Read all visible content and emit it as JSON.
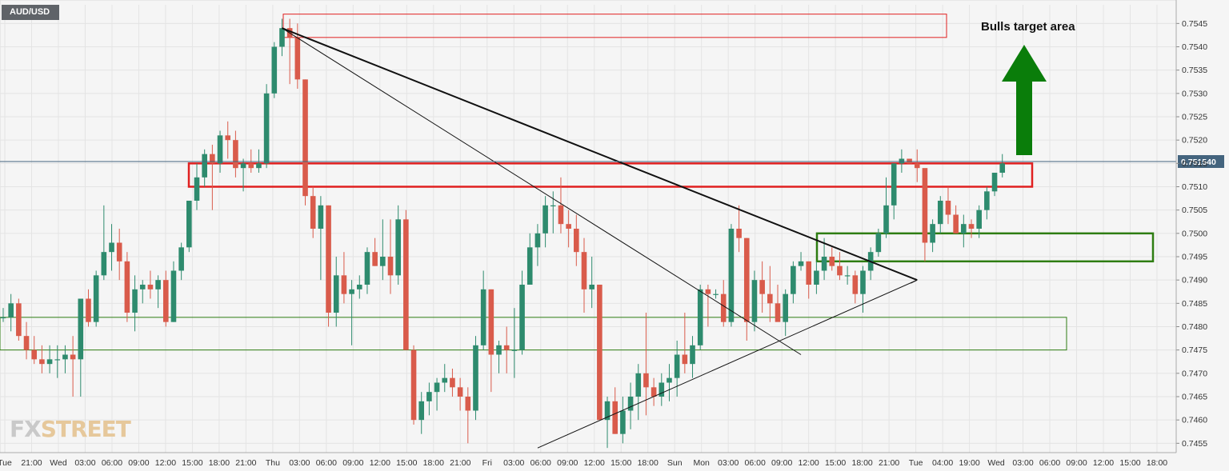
{
  "symbol": "AUD/USD",
  "annotation": "Bulls target area",
  "logo": {
    "part1": "FX",
    "part2": "STREET"
  },
  "colors": {
    "up": "#2e8b6e",
    "down": "#d95b4b",
    "zone_red": "#e02020",
    "zone_green": "#2e7d12",
    "arrow": "#0a7d0a",
    "price_line": "#44647e"
  },
  "chart_data": {
    "type": "candlestick",
    "title": "",
    "ylim": [
      0.7453,
      0.7549
    ],
    "yticks": [
      "0.7545",
      "0.7540",
      "0.7535",
      "0.7530",
      "0.7525",
      "0.7520",
      "0.7515",
      "0.7510",
      "0.7505",
      "0.7500",
      "0.7495",
      "0.7490",
      "0.7485",
      "0.7480",
      "0.7475",
      "0.7470",
      "0.7465",
      "0.7460",
      "0.7455"
    ],
    "xticks": [
      "Tue",
      "21:00",
      "Wed",
      "03:00",
      "06:00",
      "09:00",
      "12:00",
      "15:00",
      "18:00",
      "21:00",
      "Thu",
      "03:00",
      "06:00",
      "09:00",
      "12:00",
      "15:00",
      "18:00",
      "21:00",
      "Fri",
      "03:00",
      "06:00",
      "09:00",
      "12:00",
      "15:00",
      "18:00",
      "Sun",
      "Mon",
      "03:00",
      "06:00",
      "09:00",
      "12:00",
      "15:00",
      "18:00",
      "21:00",
      "Tue",
      "04:00",
      "19:00",
      "Wed",
      "03:00",
      "06:00",
      "09:00",
      "12:00",
      "15:00",
      "18:00"
    ],
    "current_price": "0.751540",
    "series": [
      {
        "values": [
          {
            "o": 0.7482,
            "h": 0.7484,
            "l": 0.7481,
            "c": 0.7482
          },
          {
            "o": 0.7482,
            "h": 0.7487,
            "l": 0.7479,
            "c": 0.7485
          },
          {
            "o": 0.7485,
            "h": 0.7486,
            "l": 0.7477,
            "c": 0.7478
          },
          {
            "o": 0.7478,
            "h": 0.7481,
            "l": 0.7473,
            "c": 0.7475
          },
          {
            "o": 0.7475,
            "h": 0.7478,
            "l": 0.7472,
            "c": 0.7473
          },
          {
            "o": 0.7473,
            "h": 0.7476,
            "l": 0.747,
            "c": 0.7472
          },
          {
            "o": 0.7472,
            "h": 0.7476,
            "l": 0.747,
            "c": 0.7473
          },
          {
            "o": 0.7473,
            "h": 0.7476,
            "l": 0.7469,
            "c": 0.7473
          },
          {
            "o": 0.7473,
            "h": 0.7476,
            "l": 0.747,
            "c": 0.7474
          },
          {
            "o": 0.7474,
            "h": 0.7478,
            "l": 0.7465,
            "c": 0.7473
          },
          {
            "o": 0.7473,
            "h": 0.7486,
            "l": 0.7465,
            "c": 0.7486
          },
          {
            "o": 0.7486,
            "h": 0.7488,
            "l": 0.748,
            "c": 0.7481
          },
          {
            "o": 0.7481,
            "h": 0.7492,
            "l": 0.748,
            "c": 0.7491
          },
          {
            "o": 0.7491,
            "h": 0.7506,
            "l": 0.749,
            "c": 0.7496
          },
          {
            "o": 0.7496,
            "h": 0.7502,
            "l": 0.7492,
            "c": 0.7498
          },
          {
            "o": 0.7498,
            "h": 0.7501,
            "l": 0.749,
            "c": 0.7494
          },
          {
            "o": 0.7494,
            "h": 0.7496,
            "l": 0.7481,
            "c": 0.7483
          },
          {
            "o": 0.7483,
            "h": 0.7491,
            "l": 0.7479,
            "c": 0.7488
          },
          {
            "o": 0.7488,
            "h": 0.749,
            "l": 0.7485,
            "c": 0.7489
          },
          {
            "o": 0.7489,
            "h": 0.7492,
            "l": 0.7486,
            "c": 0.7488
          },
          {
            "o": 0.7488,
            "h": 0.7491,
            "l": 0.7484,
            "c": 0.749
          },
          {
            "o": 0.749,
            "h": 0.7492,
            "l": 0.748,
            "c": 0.7481
          },
          {
            "o": 0.7481,
            "h": 0.7494,
            "l": 0.7481,
            "c": 0.7492
          },
          {
            "o": 0.7492,
            "h": 0.7498,
            "l": 0.749,
            "c": 0.7497
          },
          {
            "o": 0.7497,
            "h": 0.7507,
            "l": 0.7496,
            "c": 0.7507
          },
          {
            "o": 0.7507,
            "h": 0.7515,
            "l": 0.7505,
            "c": 0.7512
          },
          {
            "o": 0.7512,
            "h": 0.7518,
            "l": 0.751,
            "c": 0.7517
          },
          {
            "o": 0.7517,
            "h": 0.7519,
            "l": 0.7505,
            "c": 0.7515
          },
          {
            "o": 0.7515,
            "h": 0.7522,
            "l": 0.7513,
            "c": 0.7521
          },
          {
            "o": 0.7521,
            "h": 0.7524,
            "l": 0.7516,
            "c": 0.752
          },
          {
            "o": 0.752,
            "h": 0.7522,
            "l": 0.7512,
            "c": 0.7514
          },
          {
            "o": 0.7514,
            "h": 0.7516,
            "l": 0.7509,
            "c": 0.7515
          },
          {
            "o": 0.7515,
            "h": 0.7518,
            "l": 0.7513,
            "c": 0.7514
          },
          {
            "o": 0.7514,
            "h": 0.7518,
            "l": 0.7513,
            "c": 0.7515
          },
          {
            "o": 0.7515,
            "h": 0.7532,
            "l": 0.7514,
            "c": 0.753
          },
          {
            "o": 0.753,
            "h": 0.7541,
            "l": 0.7529,
            "c": 0.754
          },
          {
            "o": 0.754,
            "h": 0.7546,
            "l": 0.7538,
            "c": 0.7544
          },
          {
            "o": 0.7544,
            "h": 0.7546,
            "l": 0.7532,
            "c": 0.7542
          },
          {
            "o": 0.7542,
            "h": 0.7545,
            "l": 0.7531,
            "c": 0.7533
          },
          {
            "o": 0.7533,
            "h": 0.7533,
            "l": 0.7506,
            "c": 0.7508
          },
          {
            "o": 0.7508,
            "h": 0.751,
            "l": 0.7499,
            "c": 0.7501
          },
          {
            "o": 0.7501,
            "h": 0.7508,
            "l": 0.749,
            "c": 0.7506
          },
          {
            "o": 0.7506,
            "h": 0.7506,
            "l": 0.748,
            "c": 0.7483
          },
          {
            "o": 0.7483,
            "h": 0.7495,
            "l": 0.748,
            "c": 0.7491
          },
          {
            "o": 0.7491,
            "h": 0.7496,
            "l": 0.7485,
            "c": 0.7487
          },
          {
            "o": 0.7487,
            "h": 0.749,
            "l": 0.7476,
            "c": 0.7488
          },
          {
            "o": 0.7488,
            "h": 0.7491,
            "l": 0.7486,
            "c": 0.7489
          },
          {
            "o": 0.7489,
            "h": 0.7497,
            "l": 0.7487,
            "c": 0.7496
          },
          {
            "o": 0.7496,
            "h": 0.7499,
            "l": 0.7493,
            "c": 0.7493
          },
          {
            "o": 0.7493,
            "h": 0.7503,
            "l": 0.749,
            "c": 0.7495
          },
          {
            "o": 0.7495,
            "h": 0.7503,
            "l": 0.7487,
            "c": 0.7491
          },
          {
            "o": 0.7491,
            "h": 0.7506,
            "l": 0.7489,
            "c": 0.7503
          },
          {
            "o": 0.7503,
            "h": 0.7505,
            "l": 0.7475,
            "c": 0.7475
          },
          {
            "o": 0.7475,
            "h": 0.7476,
            "l": 0.7459,
            "c": 0.746
          },
          {
            "o": 0.746,
            "h": 0.7466,
            "l": 0.7457,
            "c": 0.7464
          },
          {
            "o": 0.7464,
            "h": 0.7468,
            "l": 0.7461,
            "c": 0.7466
          },
          {
            "o": 0.7466,
            "h": 0.7469,
            "l": 0.7462,
            "c": 0.7468
          },
          {
            "o": 0.7468,
            "h": 0.7472,
            "l": 0.7466,
            "c": 0.7469
          },
          {
            "o": 0.7469,
            "h": 0.7471,
            "l": 0.7465,
            "c": 0.7467
          },
          {
            "o": 0.7467,
            "h": 0.7469,
            "l": 0.7462,
            "c": 0.7465
          },
          {
            "o": 0.7465,
            "h": 0.7467,
            "l": 0.7455,
            "c": 0.7462
          },
          {
            "o": 0.7462,
            "h": 0.7478,
            "l": 0.746,
            "c": 0.7476
          },
          {
            "o": 0.7476,
            "h": 0.7492,
            "l": 0.7475,
            "c": 0.7488
          },
          {
            "o": 0.7488,
            "h": 0.7488,
            "l": 0.7466,
            "c": 0.7474
          },
          {
            "o": 0.7474,
            "h": 0.7477,
            "l": 0.747,
            "c": 0.7476
          },
          {
            "o": 0.7476,
            "h": 0.748,
            "l": 0.747,
            "c": 0.7475
          },
          {
            "o": 0.7475,
            "h": 0.7484,
            "l": 0.7469,
            "c": 0.7475
          },
          {
            "o": 0.7475,
            "h": 0.7492,
            "l": 0.7474,
            "c": 0.7489
          },
          {
            "o": 0.7489,
            "h": 0.75,
            "l": 0.7489,
            "c": 0.7497
          },
          {
            "o": 0.7497,
            "h": 0.7502,
            "l": 0.7493,
            "c": 0.75
          },
          {
            "o": 0.75,
            "h": 0.7508,
            "l": 0.7497,
            "c": 0.7506
          },
          {
            "o": 0.7506,
            "h": 0.7509,
            "l": 0.75,
            "c": 0.7506
          },
          {
            "o": 0.7506,
            "h": 0.7512,
            "l": 0.75,
            "c": 0.7502
          },
          {
            "o": 0.7502,
            "h": 0.7505,
            "l": 0.7497,
            "c": 0.7501
          },
          {
            "o": 0.7501,
            "h": 0.7504,
            "l": 0.7493,
            "c": 0.7496
          },
          {
            "o": 0.7496,
            "h": 0.7499,
            "l": 0.7483,
            "c": 0.7488
          },
          {
            "o": 0.7488,
            "h": 0.7495,
            "l": 0.7484,
            "c": 0.7489
          },
          {
            "o": 0.7489,
            "h": 0.7489,
            "l": 0.746,
            "c": 0.746
          },
          {
            "o": 0.746,
            "h": 0.7465,
            "l": 0.7454,
            "c": 0.7464
          },
          {
            "o": 0.7464,
            "h": 0.7467,
            "l": 0.7457,
            "c": 0.7457
          },
          {
            "o": 0.7457,
            "h": 0.7465,
            "l": 0.7455,
            "c": 0.7462
          },
          {
            "o": 0.7462,
            "h": 0.7468,
            "l": 0.7458,
            "c": 0.7465
          },
          {
            "o": 0.7465,
            "h": 0.7472,
            "l": 0.746,
            "c": 0.747
          },
          {
            "o": 0.747,
            "h": 0.7483,
            "l": 0.7461,
            "c": 0.7467
          },
          {
            "o": 0.7467,
            "h": 0.7469,
            "l": 0.7463,
            "c": 0.7465
          },
          {
            "o": 0.7465,
            "h": 0.747,
            "l": 0.7463,
            "c": 0.7468
          },
          {
            "o": 0.7468,
            "h": 0.7472,
            "l": 0.7464,
            "c": 0.7469
          },
          {
            "o": 0.7469,
            "h": 0.7477,
            "l": 0.7465,
            "c": 0.7474
          },
          {
            "o": 0.7474,
            "h": 0.7483,
            "l": 0.747,
            "c": 0.7472
          },
          {
            "o": 0.7472,
            "h": 0.7478,
            "l": 0.7469,
            "c": 0.7476
          },
          {
            "o": 0.7476,
            "h": 0.7489,
            "l": 0.7475,
            "c": 0.7488
          },
          {
            "o": 0.7488,
            "h": 0.7489,
            "l": 0.748,
            "c": 0.7487
          },
          {
            "o": 0.7487,
            "h": 0.7488,
            "l": 0.7486,
            "c": 0.7487
          },
          {
            "o": 0.7487,
            "h": 0.749,
            "l": 0.748,
            "c": 0.7481
          },
          {
            "o": 0.7481,
            "h": 0.7502,
            "l": 0.748,
            "c": 0.7501
          },
          {
            "o": 0.7501,
            "h": 0.7506,
            "l": 0.7496,
            "c": 0.7499
          },
          {
            "o": 0.7499,
            "h": 0.7499,
            "l": 0.7477,
            "c": 0.7481
          },
          {
            "o": 0.7481,
            "h": 0.7492,
            "l": 0.7479,
            "c": 0.749
          },
          {
            "o": 0.749,
            "h": 0.7494,
            "l": 0.7483,
            "c": 0.7487
          },
          {
            "o": 0.7487,
            "h": 0.7493,
            "l": 0.7481,
            "c": 0.7485
          },
          {
            "o": 0.7485,
            "h": 0.7489,
            "l": 0.7482,
            "c": 0.7481
          },
          {
            "o": 0.7481,
            "h": 0.7488,
            "l": 0.7478,
            "c": 0.7487
          },
          {
            "o": 0.7487,
            "h": 0.7494,
            "l": 0.7485,
            "c": 0.7493
          },
          {
            "o": 0.7493,
            "h": 0.7496,
            "l": 0.7492,
            "c": 0.7494
          },
          {
            "o": 0.7494,
            "h": 0.7494,
            "l": 0.7486,
            "c": 0.7489
          },
          {
            "o": 0.7489,
            "h": 0.7494,
            "l": 0.7487,
            "c": 0.7492
          },
          {
            "o": 0.7492,
            "h": 0.7499,
            "l": 0.749,
            "c": 0.7495
          },
          {
            "o": 0.7495,
            "h": 0.7497,
            "l": 0.7492,
            "c": 0.7493
          },
          {
            "o": 0.7493,
            "h": 0.7496,
            "l": 0.749,
            "c": 0.7491
          },
          {
            "o": 0.7491,
            "h": 0.7493,
            "l": 0.7489,
            "c": 0.7491
          },
          {
            "o": 0.7491,
            "h": 0.7492,
            "l": 0.7485,
            "c": 0.7487
          },
          {
            "o": 0.7487,
            "h": 0.7493,
            "l": 0.7483,
            "c": 0.7492
          },
          {
            "o": 0.7492,
            "h": 0.7497,
            "l": 0.749,
            "c": 0.7496
          },
          {
            "o": 0.7496,
            "h": 0.7501,
            "l": 0.7495,
            "c": 0.75
          },
          {
            "o": 0.75,
            "h": 0.7512,
            "l": 0.7499,
            "c": 0.7506
          },
          {
            "o": 0.7506,
            "h": 0.7515,
            "l": 0.7503,
            "c": 0.7515
          },
          {
            "o": 0.7515,
            "h": 0.7518,
            "l": 0.7513,
            "c": 0.7516
          },
          {
            "o": 0.7516,
            "h": 0.7516,
            "l": 0.7515,
            "c": 0.7515
          },
          {
            "o": 0.7515,
            "h": 0.7518,
            "l": 0.7511,
            "c": 0.7514
          },
          {
            "o": 0.7514,
            "h": 0.7513,
            "l": 0.7494,
            "c": 0.7498
          },
          {
            "o": 0.7498,
            "h": 0.7503,
            "l": 0.7496,
            "c": 0.7502
          },
          {
            "o": 0.7502,
            "h": 0.7508,
            "l": 0.75,
            "c": 0.7507
          },
          {
            "o": 0.7507,
            "h": 0.751,
            "l": 0.7502,
            "c": 0.7504
          },
          {
            "o": 0.7504,
            "h": 0.7506,
            "l": 0.75,
            "c": 0.75
          },
          {
            "o": 0.75,
            "h": 0.7504,
            "l": 0.7497,
            "c": 0.7502
          },
          {
            "o": 0.7502,
            "h": 0.7503,
            "l": 0.7499,
            "c": 0.7501
          },
          {
            "o": 0.7501,
            "h": 0.7506,
            "l": 0.7499,
            "c": 0.7505
          },
          {
            "o": 0.7505,
            "h": 0.751,
            "l": 0.7503,
            "c": 0.7509
          },
          {
            "o": 0.7509,
            "h": 0.7513,
            "l": 0.7508,
            "c": 0.7513
          },
          {
            "o": 0.7513,
            "h": 0.7517,
            "l": 0.7512,
            "c": 0.7515
          }
        ]
      }
    ],
    "zones": [
      {
        "color": "red",
        "style": "thin",
        "from": 0.7542,
        "to": 0.7547
      },
      {
        "color": "red",
        "style": "thick",
        "from": 0.751,
        "to": 0.7515
      },
      {
        "color": "green",
        "style": "thick",
        "from": 0.7494,
        "to": 0.75
      },
      {
        "color": "green",
        "style": "thin",
        "from": 0.7475,
        "to": 0.7482
      }
    ],
    "trendlines": [
      {
        "style": "thick",
        "from": [
          36,
          0.7544
        ],
        "to": [
          80,
          0.7515
        ],
        "then_to": [
          118,
          0.749
        ]
      },
      {
        "style": "thin",
        "from": [
          36,
          0.7544
        ],
        "to": [
          103,
          0.7474
        ]
      },
      {
        "style": "thin",
        "from": [
          69,
          0.7454
        ],
        "to": [
          118,
          0.749
        ]
      }
    ]
  }
}
